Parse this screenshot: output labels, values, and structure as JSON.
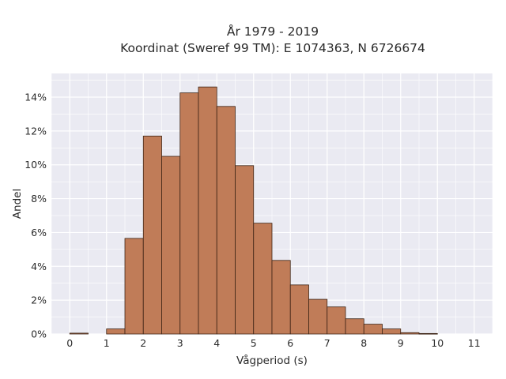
{
  "chart_data": {
    "type": "bar",
    "title": "År 1979 - 2019",
    "subtitle": "Koordinat (Sweref 99 TM): E 1074363, N 6726674",
    "xlabel": "Vågperiod (s)",
    "ylabel": "Andel",
    "bin_width": 0.5,
    "bin_starts": [
      0,
      0.5,
      1,
      1.5,
      2,
      2.5,
      3,
      3.5,
      4,
      4.5,
      5,
      5.5,
      6,
      6.5,
      7,
      7.5,
      8,
      8.5,
      9,
      9.5,
      10
    ],
    "values": [
      0.0005,
      0,
      0.003,
      0.0565,
      0.117,
      0.105,
      0.1425,
      0.146,
      0.1345,
      0.0995,
      0.0655,
      0.0435,
      0.029,
      0.0205,
      0.016,
      0.009,
      0.0058,
      0.003,
      0.0008,
      0.0003,
      0
    ],
    "xlim": [
      -0.5,
      11.5
    ],
    "ylim": [
      0,
      0.154
    ],
    "xticks": [
      "0",
      "1",
      "2",
      "3",
      "4",
      "5",
      "6",
      "7",
      "8",
      "9",
      "10",
      "11"
    ],
    "yticks": [
      "0%",
      "2%",
      "4%",
      "6%",
      "8%",
      "10%",
      "12%",
      "14%"
    ],
    "grid": true,
    "legend": "none",
    "colors": {
      "bar_fill": "#c07c58",
      "bar_edge": "#3d2416",
      "plot_background": "#eaeaf2",
      "grid": "#ffffff"
    }
  }
}
